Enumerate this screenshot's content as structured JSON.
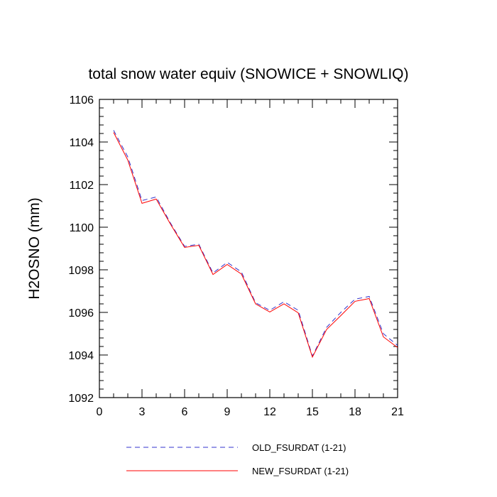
{
  "chart_data": {
    "type": "line",
    "title": "total snow water equiv (SNOWICE + SNOWLIQ)",
    "xlabel": "",
    "ylabel": "H2OSNO  (mm)",
    "xlim": [
      0,
      21
    ],
    "ylim": [
      1092,
      1106
    ],
    "xticks": [
      0,
      3,
      6,
      9,
      12,
      15,
      18,
      21
    ],
    "yticks": [
      1092,
      1094,
      1096,
      1098,
      1100,
      1102,
      1104,
      1106
    ],
    "grid": false,
    "legend_position": "bottom",
    "x": [
      1,
      2,
      3,
      4,
      5,
      6,
      7,
      8,
      9,
      10,
      11,
      12,
      13,
      14,
      15,
      16,
      17,
      18,
      19,
      20,
      21
    ],
    "series": [
      {
        "name": "OLD_FSURDAT (1-21)",
        "color": "#3333cc",
        "dash": "dashed",
        "values": [
          1104.55,
          1103.3,
          1101.25,
          1101.42,
          1100.2,
          1099.1,
          1099.2,
          1097.85,
          1098.35,
          1097.9,
          1096.45,
          1096.1,
          1096.5,
          1096.1,
          1093.95,
          1095.3,
          1096.0,
          1096.62,
          1096.75,
          1095.0,
          1094.45
        ]
      },
      {
        "name": "NEW_FSURDAT (1-21)",
        "color": "#ff0000",
        "dash": "solid",
        "values": [
          1104.45,
          1103.15,
          1101.12,
          1101.32,
          1100.15,
          1099.05,
          1099.15,
          1097.78,
          1098.25,
          1097.8,
          1096.4,
          1096.02,
          1096.4,
          1095.98,
          1093.9,
          1095.2,
          1095.85,
          1096.52,
          1096.65,
          1094.85,
          1094.35
        ]
      }
    ]
  }
}
